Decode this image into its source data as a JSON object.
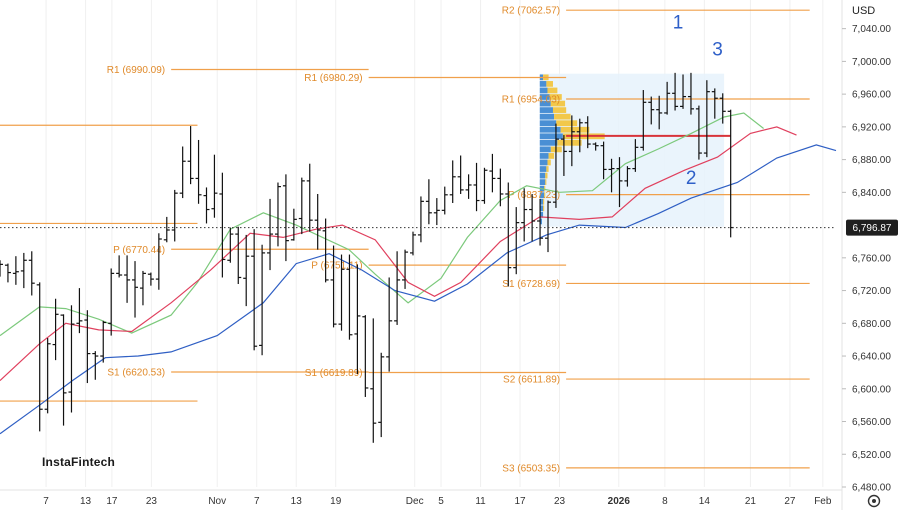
{
  "watermark": "InstaFintech",
  "currency": "USD",
  "chart_data": {
    "type": "ohlc",
    "ylim": [
      6480,
      7075
    ],
    "y_ticks": [
      7040,
      7000,
      6960,
      6920,
      6880,
      6840,
      6760,
      6720,
      6680,
      6640,
      6600,
      6560,
      6520,
      6480
    ],
    "y_tick_labels": [
      "7,040.00",
      "7,000.00",
      "6,960.00",
      "6,920.00",
      "6,880.00",
      "6,840.00",
      "6,760.00",
      "6,720.00",
      "6,680.00",
      "6,640.00",
      "6,600.00",
      "6,560.00",
      "6,520.00",
      "6,480.00"
    ],
    "last_price": 6796.87,
    "last_price_label": "6,796.87",
    "x_ticks": [
      {
        "label": "7",
        "t": 7,
        "bold": false
      },
      {
        "label": "13",
        "t": 13,
        "bold": false
      },
      {
        "label": "17",
        "t": 17,
        "bold": false
      },
      {
        "label": "23",
        "t": 23,
        "bold": false
      },
      {
        "label": "Nov",
        "t": 33,
        "bold": false
      },
      {
        "label": "7",
        "t": 39,
        "bold": false
      },
      {
        "label": "13",
        "t": 45,
        "bold": false
      },
      {
        "label": "19",
        "t": 51,
        "bold": false
      },
      {
        "label": "Dec",
        "t": 63,
        "bold": false
      },
      {
        "label": "5",
        "t": 67,
        "bold": false
      },
      {
        "label": "11",
        "t": 73,
        "bold": false
      },
      {
        "label": "17",
        "t": 79,
        "bold": false
      },
      {
        "label": "23",
        "t": 85,
        "bold": false
      },
      {
        "label": "2026",
        "t": 94,
        "bold": true
      },
      {
        "label": "8",
        "t": 101,
        "bold": false
      },
      {
        "label": "14",
        "t": 107,
        "bold": false
      },
      {
        "label": "21",
        "t": 114,
        "bold": false
      },
      {
        "label": "27",
        "t": 120,
        "bold": false
      },
      {
        "label": "Feb",
        "t": 125,
        "bold": false
      }
    ],
    "pivot_levels": [
      {
        "label": "R1 (6990.09)",
        "value": 6990.09,
        "t_from": 26,
        "t_to": 56
      },
      {
        "label": "P (6770.44)",
        "value": 6770.44,
        "t_from": 26,
        "t_to": 56
      },
      {
        "label": "S1 (6620.53)",
        "value": 6620.53,
        "t_from": 26,
        "t_to": 56
      },
      {
        "label": "R1 (6980.29)",
        "value": 6980.29,
        "t_from": 56,
        "t_to": 86
      },
      {
        "label": "P (6751.11)",
        "value": 6751.11,
        "t_from": 56,
        "t_to": 86
      },
      {
        "label": "S1 (6619.89)",
        "value": 6619.89,
        "t_from": 56,
        "t_to": 86
      },
      {
        "label": "R2 (7062.57)",
        "value": 7062.57,
        "t_from": 86,
        "t_to": 123
      },
      {
        "label": "R1 (6954.03)",
        "value": 6954.03,
        "t_from": 86,
        "t_to": 123
      },
      {
        "label": "P (6837.23)",
        "value": 6837.23,
        "t_from": 86,
        "t_to": 123
      },
      {
        "label": "S1 (6728.69)",
        "value": 6728.69,
        "t_from": 86,
        "t_to": 123
      },
      {
        "label": "S2 (6611.89)",
        "value": 6611.89,
        "t_from": 86,
        "t_to": 123
      },
      {
        "label": "S3 (6503.35)",
        "value": 6503.35,
        "t_from": 86,
        "t_to": 123
      }
    ],
    "partial_levels": [
      {
        "value": 6922,
        "t_from": 0,
        "t_to": 30
      },
      {
        "value": 6802,
        "t_from": 0,
        "t_to": 30
      },
      {
        "value": 6585,
        "t_from": 0,
        "t_to": 30
      }
    ],
    "poc_level": {
      "value": 6909,
      "t_from": 86,
      "t_to": 111
    },
    "volume_profile": {
      "t_from": 82,
      "t_to": 110,
      "high": 6985,
      "low": 6798,
      "rows": [
        {
          "price": 6980,
          "buy": 0.3,
          "sell": 0.5
        },
        {
          "price": 6972,
          "buy": 0.6,
          "sell": 0.6
        },
        {
          "price": 6964,
          "buy": 0.7,
          "sell": 0.9
        },
        {
          "price": 6956,
          "buy": 0.9,
          "sell": 1.1
        },
        {
          "price": 6948,
          "buy": 1.0,
          "sell": 1.3
        },
        {
          "price": 6940,
          "buy": 1.2,
          "sell": 1.2
        },
        {
          "price": 6932,
          "buy": 1.3,
          "sell": 1.5
        },
        {
          "price": 6924,
          "buy": 1.5,
          "sell": 1.9
        },
        {
          "price": 6916,
          "buy": 1.9,
          "sell": 2.6
        },
        {
          "price": 6908,
          "buy": 2.1,
          "sell": 3.8
        },
        {
          "price": 6900,
          "buy": 1.6,
          "sell": 2.2
        },
        {
          "price": 6892,
          "buy": 1.0,
          "sell": 1.0
        },
        {
          "price": 6884,
          "buy": 0.8,
          "sell": 0.5
        },
        {
          "price": 6876,
          "buy": 0.7,
          "sell": 0.3
        },
        {
          "price": 6868,
          "buy": 0.6,
          "sell": 0.2
        },
        {
          "price": 6860,
          "buy": 0.5,
          "sell": 0.2
        },
        {
          "price": 6852,
          "buy": 0.5,
          "sell": 0.1
        },
        {
          "price": 6844,
          "buy": 0.4,
          "sell": 0.1
        },
        {
          "price": 6836,
          "buy": 0.4,
          "sell": 0.1
        },
        {
          "price": 6828,
          "buy": 0.3,
          "sell": 0.1
        },
        {
          "price": 6820,
          "buy": 0.3,
          "sell": 0.1
        },
        {
          "price": 6812,
          "buy": 0.3,
          "sell": 0.0
        },
        {
          "price": 6804,
          "buy": 0.2,
          "sell": 0.0
        }
      ]
    },
    "annotations": [
      {
        "text": "1",
        "t": 103,
        "price": 7040
      },
      {
        "text": "2",
        "t": 105,
        "price": 6850
      },
      {
        "text": "3",
        "t": 109,
        "price": 7007
      }
    ],
    "series_ma": [
      {
        "color": "#7cc97c",
        "points": [
          [
            0,
            6665
          ],
          [
            6,
            6700
          ],
          [
            10,
            6698
          ],
          [
            15,
            6685
          ],
          [
            20,
            6668
          ],
          [
            26,
            6690
          ],
          [
            30,
            6730
          ],
          [
            35,
            6795
          ],
          [
            40,
            6815
          ],
          [
            45,
            6800
          ],
          [
            49,
            6785
          ],
          [
            53,
            6770
          ],
          [
            57,
            6740
          ],
          [
            62,
            6705
          ],
          [
            67,
            6735
          ],
          [
            71,
            6785
          ],
          [
            76,
            6830
          ],
          [
            80,
            6848
          ],
          [
            85,
            6840
          ],
          [
            90,
            6842
          ],
          [
            95,
            6875
          ],
          [
            100,
            6893
          ],
          [
            105,
            6912
          ],
          [
            110,
            6932
          ],
          [
            113,
            6937
          ],
          [
            116,
            6918
          ]
        ]
      },
      {
        "color": "#e0405e",
        "points": [
          [
            0,
            6610
          ],
          [
            6,
            6655
          ],
          [
            10,
            6680
          ],
          [
            15,
            6672
          ],
          [
            20,
            6670
          ],
          [
            26,
            6705
          ],
          [
            32,
            6745
          ],
          [
            38,
            6790
          ],
          [
            43,
            6785
          ],
          [
            48,
            6795
          ],
          [
            52,
            6800
          ],
          [
            57,
            6782
          ],
          [
            62,
            6730
          ],
          [
            66,
            6713
          ],
          [
            70,
            6730
          ],
          [
            76,
            6780
          ],
          [
            82,
            6810
          ],
          [
            88,
            6807
          ],
          [
            93,
            6810
          ],
          [
            98,
            6845
          ],
          [
            104,
            6867
          ],
          [
            109,
            6883
          ],
          [
            114,
            6912
          ],
          [
            118,
            6920
          ],
          [
            121,
            6910
          ]
        ]
      },
      {
        "color": "#2f5fc4",
        "points": [
          [
            0,
            6545
          ],
          [
            6,
            6580
          ],
          [
            11,
            6610
          ],
          [
            16,
            6638
          ],
          [
            21,
            6640
          ],
          [
            26,
            6645
          ],
          [
            33,
            6665
          ],
          [
            40,
            6705
          ],
          [
            45,
            6753
          ],
          [
            50,
            6765
          ],
          [
            55,
            6745
          ],
          [
            60,
            6720
          ],
          [
            66,
            6707
          ],
          [
            71,
            6728
          ],
          [
            77,
            6766
          ],
          [
            83,
            6788
          ],
          [
            88,
            6800
          ],
          [
            95,
            6797
          ],
          [
            100,
            6814
          ],
          [
            105,
            6833
          ],
          [
            112,
            6852
          ],
          [
            118,
            6882
          ],
          [
            124,
            6898
          ],
          [
            127,
            6891
          ]
        ]
      }
    ],
    "bars": [
      [
        6767,
        6757,
        6737,
        6752
      ],
      [
        6751,
        6753,
        6730,
        6742
      ],
      [
        6741,
        6762,
        6727,
        6743
      ],
      [
        6744,
        6766,
        6723,
        6757
      ],
      [
        6757,
        6768,
        6714,
        6729
      ],
      [
        6727,
        6730,
        6548,
        6575
      ],
      [
        6575,
        6662,
        6570,
        6655
      ],
      [
        6654,
        6710,
        6635,
        6691
      ],
      [
        6690,
        6691,
        6555,
        6595
      ],
      [
        6596,
        6702,
        6571,
        6679
      ],
      [
        6680,
        6723,
        6668,
        6683
      ],
      [
        6684,
        6696,
        6607,
        6643
      ],
      [
        6643,
        6646,
        6611,
        6640
      ],
      [
        6640,
        6683,
        6632,
        6681
      ],
      [
        6680,
        6747,
        6665,
        6741
      ],
      [
        6741,
        6763,
        6736,
        6739
      ],
      [
        6739,
        6763,
        6705,
        6733
      ],
      [
        6733,
        6756,
        6687,
        6724
      ],
      [
        6723,
        6744,
        6702,
        6741
      ],
      [
        6740,
        6742,
        6726,
        6734
      ],
      [
        6734,
        6790,
        6721,
        6783
      ],
      [
        6782,
        6810,
        6779,
        6794
      ],
      [
        6794,
        6843,
        6780,
        6839
      ],
      [
        6839,
        6896,
        6833,
        6878
      ],
      [
        6878,
        6921,
        6850,
        6857
      ],
      [
        6857,
        6904,
        6826,
        6837
      ],
      [
        6836,
        6846,
        6802,
        6819
      ],
      [
        6820,
        6886,
        6809,
        6839
      ],
      [
        6838,
        6864,
        6736,
        6758
      ],
      [
        6757,
        6797,
        6754,
        6789
      ],
      [
        6789,
        6798,
        6728,
        6736
      ],
      [
        6735,
        6788,
        6701,
        6762
      ],
      [
        6762,
        6795,
        6647,
        6652
      ],
      [
        6653,
        6776,
        6641,
        6766
      ],
      [
        6766,
        6832,
        6745,
        6789
      ],
      [
        6789,
        6852,
        6774,
        6847
      ],
      [
        6848,
        6862,
        6756,
        6781
      ],
      [
        6782,
        6820,
        6781,
        6807
      ],
      [
        6808,
        6858,
        6789,
        6854
      ],
      [
        6854,
        6875,
        6792,
        6806
      ],
      [
        6806,
        6838,
        6770,
        6794
      ],
      [
        6793,
        6808,
        6730,
        6733
      ],
      [
        6733,
        6775,
        6675,
        6679
      ],
      [
        6679,
        6764,
        6671,
        6746
      ],
      [
        6746,
        6764,
        6660,
        6666
      ],
      [
        6667,
        6752,
        6618,
        6689
      ],
      [
        6688,
        6690,
        6590,
        6601
      ],
      [
        6600,
        6686,
        6534,
        6558
      ],
      [
        6559,
        6644,
        6541,
        6639
      ],
      [
        6639,
        6736,
        6621,
        6683
      ],
      [
        6683,
        6768,
        6678,
        6733
      ],
      [
        6733,
        6770,
        6722,
        6767
      ],
      [
        6766,
        6792,
        6763,
        6788
      ],
      [
        6788,
        6835,
        6779,
        6829
      ],
      [
        6829,
        6856,
        6801,
        6815
      ],
      [
        6815,
        6833,
        6800,
        6818
      ],
      [
        6818,
        6847,
        6813,
        6837
      ],
      [
        6837,
        6879,
        6827,
        6859
      ],
      [
        6859,
        6885,
        6838,
        6843
      ],
      [
        6843,
        6862,
        6832,
        6849
      ],
      [
        6849,
        6876,
        6817,
        6830
      ],
      [
        6830,
        6870,
        6826,
        6867
      ],
      [
        6866,
        6887,
        6840,
        6857
      ],
      [
        6857,
        6869,
        6823,
        6838
      ],
      [
        6838,
        6852,
        6725,
        6748
      ],
      [
        6748,
        6822,
        6740,
        6803
      ],
      [
        6803,
        6845,
        6780,
        6819
      ],
      [
        6819,
        6838,
        6780,
        6805
      ],
      [
        6805,
        6832,
        6775,
        6784
      ],
      [
        6784,
        6830,
        6767,
        6828
      ],
      [
        6828,
        6924,
        6821,
        6905
      ],
      [
        6905,
        6910,
        6860,
        6890
      ],
      [
        6890,
        6934,
        6872,
        6914
      ],
      [
        6914,
        6930,
        6889,
        6925
      ],
      [
        6925,
        6933,
        6894,
        6899
      ],
      [
        6899,
        6901,
        6891,
        6897
      ],
      [
        6897,
        6902,
        6856,
        6868
      ],
      [
        6868,
        6881,
        6840,
        6869
      ],
      [
        6869,
        6883,
        6822,
        6854
      ],
      [
        6854,
        6872,
        6847,
        6869
      ],
      [
        6869,
        6905,
        6865,
        6895
      ],
      [
        6895,
        6965,
        6891,
        6950
      ],
      [
        6950,
        6957,
        6923,
        6941
      ],
      [
        6941,
        6958,
        6917,
        6937
      ],
      [
        6937,
        6975,
        6935,
        6961
      ],
      [
        6961,
        6986,
        6940,
        6945
      ],
      [
        6945,
        6984,
        6942,
        6957
      ],
      [
        6957,
        6986,
        6935,
        6942
      ],
      [
        6942,
        6946,
        6880,
        6888
      ],
      [
        6888,
        6977,
        6883,
        6963
      ],
      [
        6963,
        6967,
        6930,
        6955
      ],
      [
        6955,
        6961,
        6924,
        6939
      ],
      [
        6939,
        6941,
        6785,
        6797
      ]
    ]
  }
}
